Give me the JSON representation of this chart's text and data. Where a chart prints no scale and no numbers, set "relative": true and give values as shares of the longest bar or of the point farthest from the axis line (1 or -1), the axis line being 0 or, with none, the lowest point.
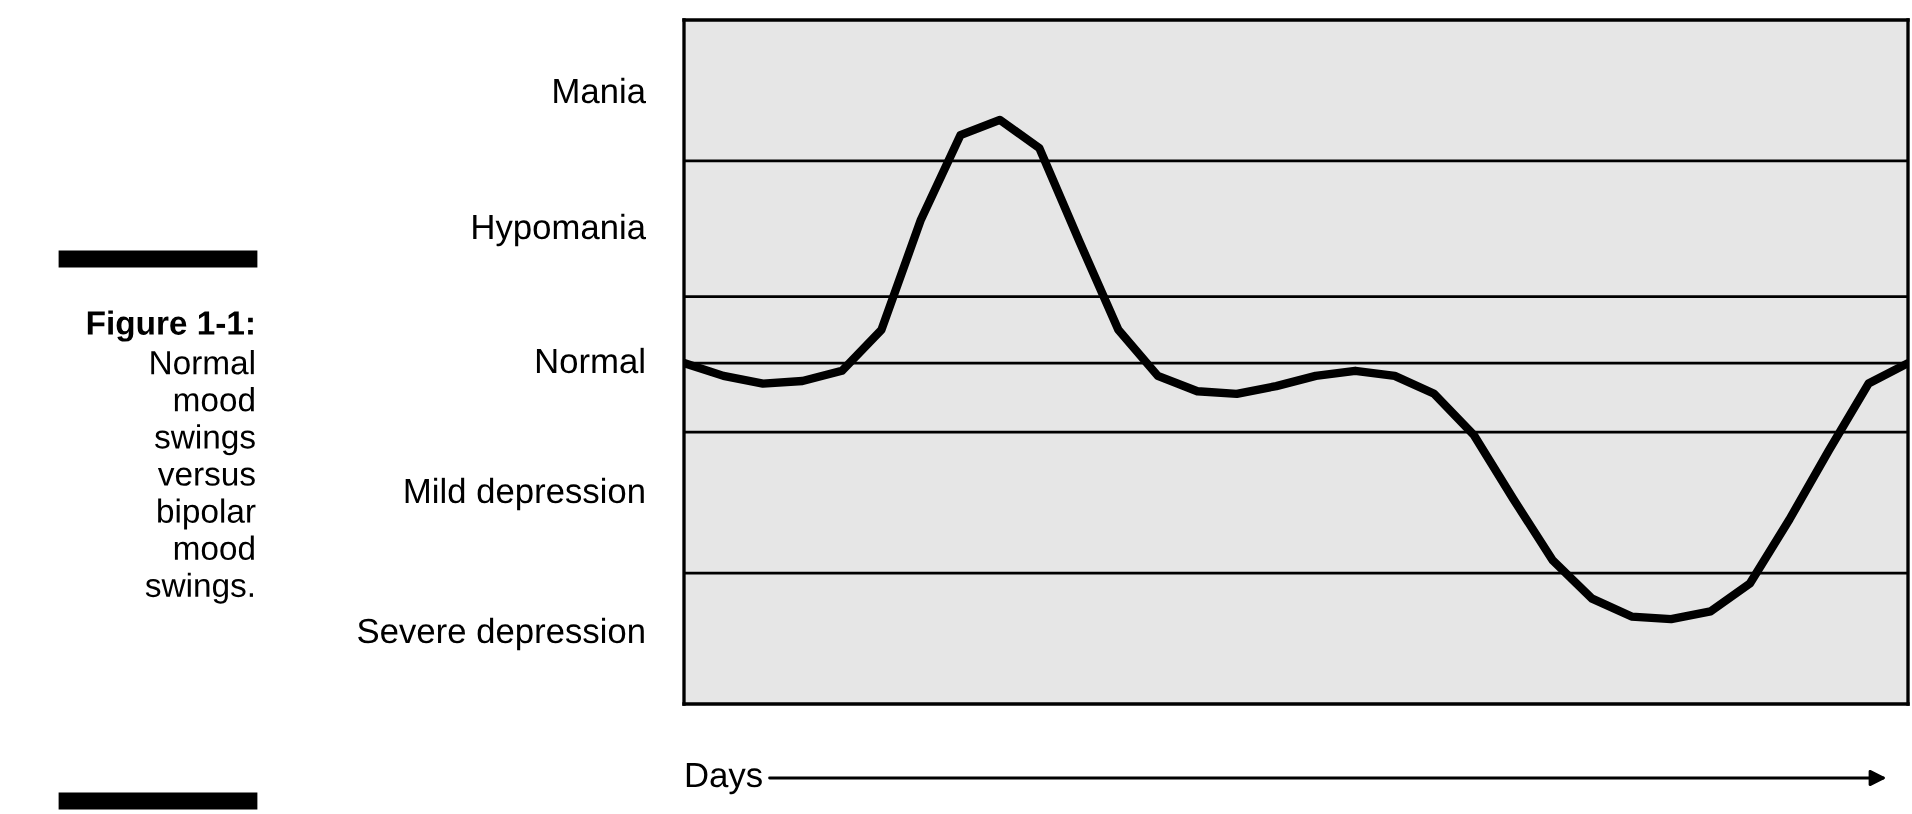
{
  "chart_data": {
    "type": "line",
    "relative": true,
    "title": "Figure 1-1:",
    "subtitle": "Normal mood swings versus bipolar mood swings.",
    "xlabel": "Days",
    "annotations": [
      "Mania",
      "Hypomania",
      "Normal",
      "Mild depression",
      "Severe depression"
    ],
    "categories": [
      null,
      null,
      null,
      null,
      null,
      null,
      null,
      null,
      null,
      null,
      null,
      null,
      null,
      null,
      null,
      null,
      null,
      null,
      null,
      null,
      null,
      null,
      null,
      null,
      null,
      null,
      null,
      null,
      null,
      null,
      null,
      null
    ],
    "series": [
      {
        "color": "#000000",
        "values": [
          0,
          -0.05,
          -0.08,
          -0.07,
          -0.03,
          0.13,
          0.56,
          0.89,
          0.95,
          0.84,
          0.48,
          0.13,
          -0.05,
          -0.11,
          -0.12,
          -0.09,
          -0.05,
          -0.03,
          -0.05,
          -0.12,
          -0.28,
          -0.53,
          -0.77,
          -0.92,
          -0.99,
          -1,
          -0.97,
          -0.86,
          -0.61,
          -0.34,
          -0.08,
          0
        ]
      }
    ],
    "ref_lines": [
      {
        "axis": "y",
        "value": 0.79,
        "color": "#000000"
      },
      {
        "axis": "y",
        "value": 0.26,
        "color": "#000000"
      },
      {
        "axis": "y",
        "value": -0.27,
        "color": "#000000"
      },
      {
        "axis": "y",
        "value": -0.82,
        "color": "#000000"
      }
    ],
    "grid": false,
    "legend": false,
    "marker": "none",
    "line_style": "solid"
  }
}
